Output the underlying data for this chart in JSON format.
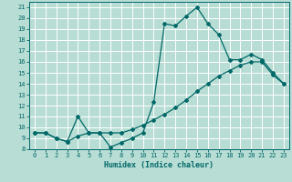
{
  "xlabel": "Humidex (Indice chaleur)",
  "xlim": [
    -0.5,
    23.5
  ],
  "ylim": [
    8,
    21.5
  ],
  "xticks": [
    0,
    1,
    2,
    3,
    4,
    5,
    6,
    7,
    8,
    9,
    10,
    11,
    12,
    13,
    14,
    15,
    16,
    17,
    18,
    19,
    20,
    21,
    22,
    23
  ],
  "yticks": [
    8,
    9,
    10,
    11,
    12,
    13,
    14,
    15,
    16,
    17,
    18,
    19,
    20,
    21
  ],
  "bg_color": "#b8ddd4",
  "grid_color": "#ffffff",
  "line_color": "#006868",
  "line1_x": [
    0,
    1,
    2,
    3,
    4,
    5,
    6,
    7,
    8,
    9,
    10,
    11,
    12,
    13,
    14,
    15,
    16,
    17,
    18,
    19,
    20,
    21,
    22,
    23
  ],
  "line1_y": [
    9.5,
    9.5,
    9.0,
    8.7,
    11.0,
    9.5,
    9.5,
    8.2,
    8.6,
    9.0,
    9.5,
    12.3,
    19.5,
    19.3,
    20.2,
    21.0,
    19.5,
    18.5,
    16.2,
    16.2,
    16.7,
    16.2,
    15.0,
    14.0
  ],
  "line2_x": [
    0,
    1,
    2,
    3,
    4,
    5,
    6,
    7,
    8,
    9,
    10,
    11,
    12,
    13,
    14,
    15,
    16,
    17,
    18,
    19,
    20,
    21,
    22,
    23
  ],
  "line2_y": [
    9.5,
    9.5,
    9.0,
    8.7,
    9.2,
    9.5,
    9.5,
    9.5,
    9.5,
    9.8,
    10.2,
    10.7,
    11.2,
    11.8,
    12.5,
    13.3,
    14.0,
    14.7,
    15.2,
    15.7,
    16.0,
    16.0,
    14.8,
    14.0
  ]
}
